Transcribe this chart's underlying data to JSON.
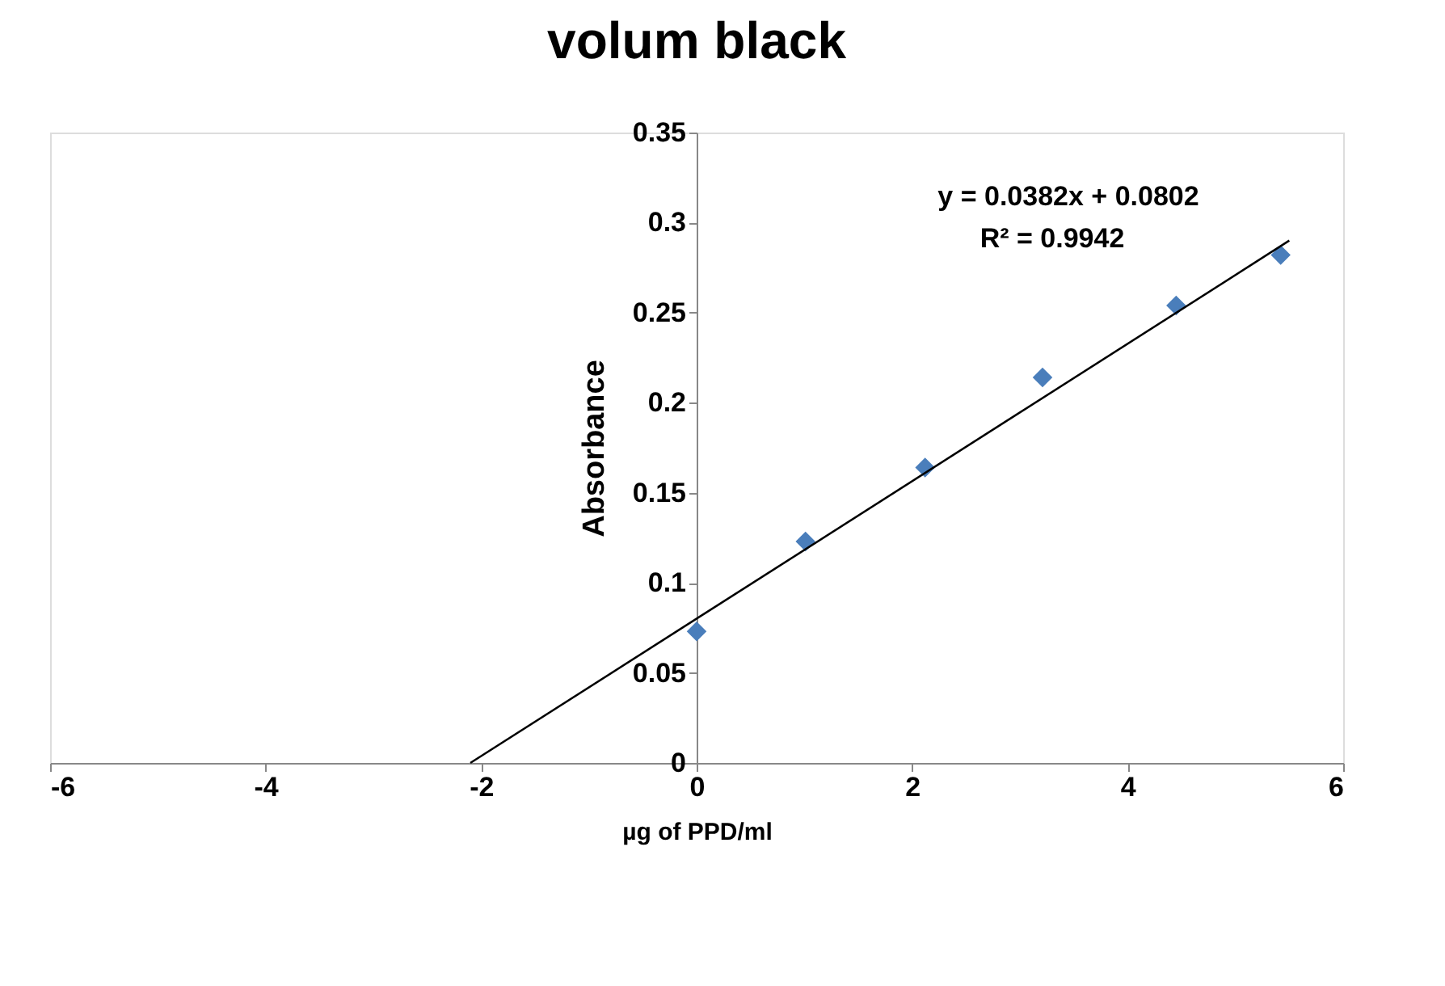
{
  "chart_data": {
    "type": "scatter",
    "title": "volum black",
    "xlabel": "µg of PPD/ml",
    "ylabel": "Absorbance",
    "series": [
      {
        "color": "#4a7ebb",
        "marker": "diamond",
        "x": [
          0,
          1.01,
          2.12,
          3.21,
          4.45,
          5.42
        ],
        "values": [
          0.073,
          0.123,
          0.164,
          0.214,
          0.254,
          0.282
        ]
      },
      {
        "type": "line",
        "color": "#000000",
        "marker": "none",
        "line_style": "solid",
        "x": [
          -2.1,
          5.5
        ],
        "values": [
          0.0,
          0.29
        ]
      }
    ],
    "annotations": [
      "y = 0.0382x + 0.0802",
      "R² = 0.9942"
    ],
    "xlim": [
      -6,
      6
    ],
    "xticks": [
      -6,
      -4,
      -2,
      0,
      2,
      4,
      6
    ],
    "ylim": [
      0,
      0.35
    ],
    "yticks": [
      0,
      0.05,
      0.1,
      0.15,
      0.2,
      0.25,
      0.3,
      0.35
    ],
    "grid": false
  }
}
